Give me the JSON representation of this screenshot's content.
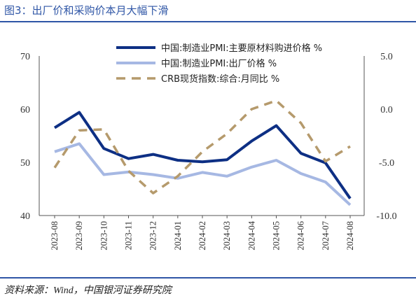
{
  "header": {
    "title": "图3：出厂价和采购价本月大幅下滑"
  },
  "footer": {
    "source": "资料来源：Wind，中国银河证券研究院"
  },
  "colors": {
    "accent": "#2f56a6",
    "series_dark": "#0d2f84",
    "series_light": "#a6b8e3",
    "series_dashed": "#b59a6c"
  },
  "chart_data": {
    "type": "line",
    "categories": [
      "2023-08",
      "2023-09",
      "2023-10",
      "2023-11",
      "2023-12",
      "2024-01",
      "2024-02",
      "2024-03",
      "2024-04",
      "2024-05",
      "2024-06",
      "2024-07",
      "2024-08"
    ],
    "y_left": {
      "ylim": [
        40,
        70
      ],
      "ticks": [
        "70",
        "60",
        "50",
        "40"
      ]
    },
    "y_right": {
      "ylim": [
        -10.0,
        5.0
      ],
      "ticks": [
        "5.0",
        "0.0",
        "-5.0",
        "-10.0"
      ]
    },
    "series": [
      {
        "name": "中国:制造业PMI:主要原材料购进价格 %",
        "axis": "left",
        "style": "solid-dark",
        "values": [
          56.5,
          59.4,
          52.6,
          50.7,
          51.5,
          50.4,
          50.1,
          50.5,
          54.0,
          56.9,
          51.7,
          49.9,
          43.2
        ]
      },
      {
        "name": "中国:制造业PMI:出厂价格 %",
        "axis": "left",
        "style": "solid-light",
        "values": [
          52.0,
          53.5,
          47.7,
          48.2,
          47.7,
          47.0,
          48.1,
          47.4,
          49.1,
          50.4,
          47.9,
          46.3,
          42.0
        ]
      },
      {
        "name": "CRB现货指数:综合:月同比 %",
        "axis": "right",
        "style": "dashed",
        "values": [
          -5.5,
          -2.0,
          -1.9,
          -5.8,
          -7.9,
          -6.3,
          -4.0,
          -2.3,
          0.0,
          0.8,
          -1.3,
          -4.9,
          -3.5
        ]
      }
    ]
  }
}
